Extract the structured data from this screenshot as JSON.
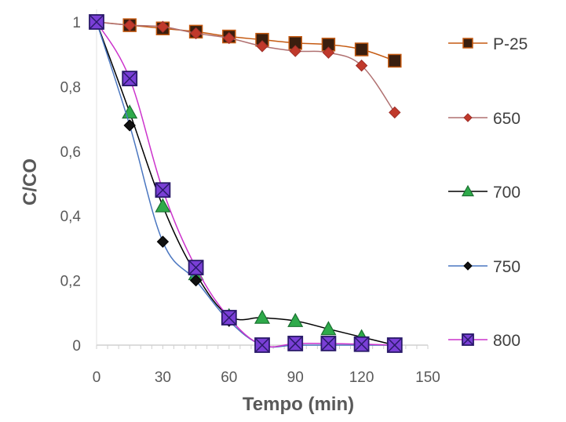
{
  "chart_data": {
    "type": "line",
    "title": "",
    "xlabel": "Tempo (min)",
    "ylabel": "C/CO",
    "xlim": [
      0,
      150
    ],
    "ylim": [
      0,
      1
    ],
    "x_ticks": [
      0,
      30,
      60,
      90,
      120,
      150
    ],
    "x_tick_labels": [
      "0",
      "30",
      "60",
      "90",
      "120",
      "150"
    ],
    "y_ticks": [
      0,
      0.2,
      0.4,
      0.6,
      0.8,
      1
    ],
    "y_tick_labels": [
      "0",
      "0,2",
      "0,4",
      "0,6",
      "0,8",
      "1"
    ],
    "grid": false,
    "legend_position": "right",
    "series": [
      {
        "name": "P-25",
        "marker": "square",
        "line_color": "#c55a11",
        "marker_fill": "#3a1e0e",
        "marker_stroke": "#c55a11",
        "x": [
          0,
          15,
          30,
          45,
          60,
          75,
          90,
          105,
          120,
          135
        ],
        "y": [
          1,
          0.99,
          0.98,
          0.97,
          0.955,
          0.945,
          0.935,
          0.93,
          0.915,
          0.88
        ]
      },
      {
        "name": "650",
        "marker": "diamond",
        "line_color": "#b07070",
        "marker_fill": "#c0392b",
        "marker_stroke": "#a0302a",
        "x": [
          0,
          15,
          30,
          45,
          60,
          75,
          90,
          105,
          120,
          135
        ],
        "y": [
          1,
          0.99,
          0.985,
          0.965,
          0.95,
          0.925,
          0.91,
          0.905,
          0.865,
          0.72
        ]
      },
      {
        "name": "700",
        "marker": "triangle",
        "line_color": "#000000",
        "marker_fill": "#2eaa4a",
        "marker_stroke": "#1a7030",
        "x": [
          0,
          15,
          30,
          45,
          60,
          75,
          90,
          105,
          120,
          135
        ],
        "y": [
          1,
          0.72,
          0.43,
          0.22,
          0.09,
          0.085,
          0.075,
          0.05,
          0.025,
          0
        ]
      },
      {
        "name": "750",
        "marker": "diamond",
        "line_color": "#4a76c0",
        "marker_fill": "#111111",
        "marker_stroke": "#000000",
        "x": [
          0,
          15,
          30,
          45,
          60,
          75,
          90,
          105,
          120,
          135
        ],
        "y": [
          1,
          0.68,
          0.32,
          0.2,
          0.075,
          0,
          0,
          0,
          0,
          0
        ]
      },
      {
        "name": "800",
        "marker": "square-x",
        "line_color": "#cc33cc",
        "marker_fill": "#7a3fd6",
        "marker_stroke": "#2a1a6a",
        "x": [
          0,
          15,
          30,
          45,
          60,
          75,
          90,
          105,
          120,
          135
        ],
        "y": [
          1,
          0.825,
          0.48,
          0.24,
          0.085,
          0,
          0.005,
          0.005,
          0.003,
          0
        ]
      }
    ]
  }
}
